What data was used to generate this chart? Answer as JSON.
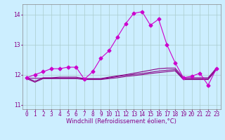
{
  "xlabel": "Windchill (Refroidissement éolien,°C)",
  "ylabel": "",
  "bg_color": "#cceeff",
  "grid_color": "#aacccc",
  "line_color": "#880088",
  "line_color2": "#cc00cc",
  "xlim": [
    -0.5,
    23.5
  ],
  "ylim": [
    10.85,
    14.35
  ],
  "yticks": [
    11,
    12,
    13,
    14
  ],
  "xticks": [
    0,
    1,
    2,
    3,
    4,
    5,
    6,
    7,
    8,
    9,
    10,
    11,
    12,
    13,
    14,
    15,
    16,
    17,
    18,
    19,
    20,
    21,
    22,
    23
  ],
  "line1_x": [
    0,
    1,
    2,
    3,
    4,
    5,
    6,
    7,
    8,
    9,
    10,
    11,
    12,
    13,
    14,
    15,
    16,
    17,
    18,
    19,
    20,
    21,
    22,
    23
  ],
  "line1_y": [
    11.9,
    12.0,
    12.1,
    12.2,
    12.2,
    12.25,
    12.25,
    11.85,
    12.1,
    12.55,
    12.8,
    13.25,
    13.7,
    14.05,
    14.1,
    13.65,
    13.85,
    13.0,
    12.4,
    11.9,
    11.95,
    12.05,
    11.65,
    12.2
  ],
  "line2_x": [
    0,
    1,
    2,
    3,
    4,
    5,
    6,
    7,
    8,
    9,
    10,
    11,
    12,
    13,
    14,
    15,
    16,
    17,
    18,
    19,
    20,
    21,
    22,
    23
  ],
  "line2_y": [
    11.9,
    11.78,
    11.9,
    11.9,
    11.92,
    11.92,
    11.92,
    11.87,
    11.87,
    11.87,
    11.92,
    11.96,
    12.0,
    12.05,
    12.1,
    12.15,
    12.2,
    12.22,
    12.22,
    11.9,
    11.9,
    11.9,
    11.9,
    12.22
  ],
  "line3_x": [
    0,
    1,
    2,
    3,
    4,
    5,
    6,
    7,
    8,
    9,
    10,
    11,
    12,
    13,
    14,
    15,
    16,
    17,
    18,
    19,
    20,
    21,
    22,
    23
  ],
  "line3_y": [
    11.88,
    11.88,
    11.88,
    11.88,
    11.88,
    11.88,
    11.88,
    11.86,
    11.86,
    11.86,
    11.9,
    11.94,
    11.98,
    12.01,
    12.04,
    12.08,
    12.12,
    12.15,
    12.17,
    11.86,
    11.86,
    11.86,
    11.86,
    12.19
  ],
  "line4_x": [
    0,
    1,
    2,
    3,
    4,
    5,
    6,
    7,
    8,
    9,
    10,
    11,
    12,
    13,
    14,
    15,
    16,
    17,
    18,
    19,
    20,
    21,
    22,
    23
  ],
  "line4_y": [
    11.87,
    11.75,
    11.87,
    11.87,
    11.87,
    11.87,
    11.87,
    11.84,
    11.84,
    11.84,
    11.87,
    11.9,
    11.94,
    11.97,
    12.0,
    12.04,
    12.07,
    12.1,
    12.13,
    11.84,
    11.84,
    11.84,
    11.84,
    12.16
  ],
  "marker": "D",
  "markersize": 2.5,
  "linewidth": 0.8,
  "tick_fontsize": 5.5,
  "label_fontsize": 6.0
}
